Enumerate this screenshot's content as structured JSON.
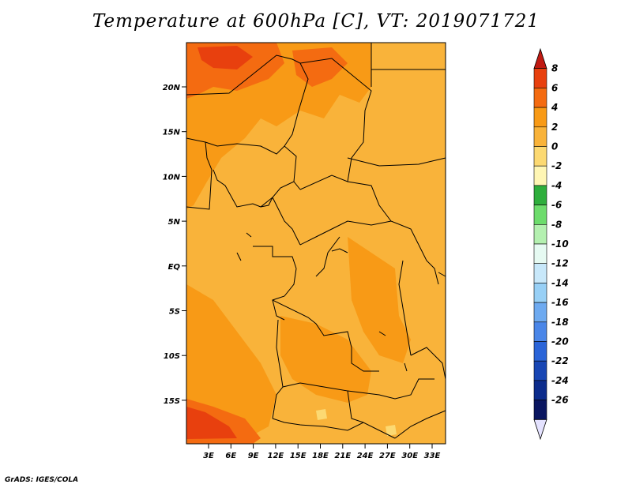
{
  "title": "Temperature at 600hPa [C], VT: 2019071721",
  "credit": "GrADS: IGES/COLA",
  "lat_labels": [
    "20N",
    "15N",
    "10N",
    "5N",
    "EQ",
    "5S",
    "10S",
    "15S"
  ],
  "lon_labels": [
    "3E",
    "6E",
    "9E",
    "12E",
    "15E",
    "18E",
    "21E",
    "24E",
    "27E",
    "30E",
    "33E"
  ],
  "colorbar": {
    "labels": [
      "8",
      "6",
      "4",
      "2",
      "0",
      "-2",
      "-4",
      "-6",
      "-8",
      "-10",
      "-12",
      "-14",
      "-16",
      "-18",
      "-20",
      "-22",
      "-24",
      "-26"
    ],
    "colors": [
      "#c01a12",
      "#e8400e",
      "#f46b11",
      "#f89a16",
      "#f9b33a",
      "#fcd972",
      "#fff6b4",
      "#2eae3c",
      "#6ddc6c",
      "#b4f0b0",
      "#e6faf2",
      "#c8e8fa",
      "#98d0f6",
      "#6eaaf0",
      "#4a86e8",
      "#2a64d8",
      "#1846b4",
      "#0c2c8c",
      "#0a1660"
    ],
    "min_arrow_color": "#e4e2ff"
  },
  "map_colors": {
    "background": "#f9b33a",
    "warm": "#f89a16",
    "hot": "#f46b11",
    "hottest": "#e8400e",
    "cool": "#fcd972",
    "border": "#000000"
  }
}
